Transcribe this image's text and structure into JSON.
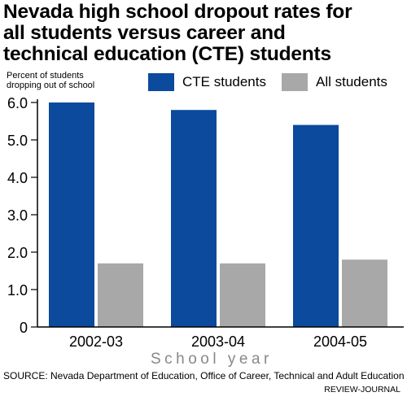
{
  "chart_data": {
    "type": "bar",
    "title_lines": [
      "Nevada high school dropout rates for",
      "all students versus career and",
      "technical education (CTE) students"
    ],
    "ylabel_lines": [
      "Percent of students",
      "dropping out of school"
    ],
    "xlabel": "School year",
    "categories": [
      "2002-03",
      "2003-04",
      "2004-05"
    ],
    "series": [
      {
        "name": "CTE students",
        "values": [
          6.0,
          5.8,
          5.4
        ],
        "color": "#0b4a9c"
      },
      {
        "name": "All students",
        "values": [
          1.7,
          1.7,
          1.8
        ],
        "color": "#a8a8a8"
      }
    ],
    "yticks": [
      "0",
      "1.0",
      "2.0",
      "3.0",
      "4.0",
      "5.0",
      "6.0"
    ],
    "ylim": [
      0,
      6
    ],
    "grid": false,
    "legend": "top-right"
  },
  "source": "SOURCE: Nevada Department of Education, Office of Career, Technical and Adult Education",
  "credit": "REVIEW-JOURNAL"
}
